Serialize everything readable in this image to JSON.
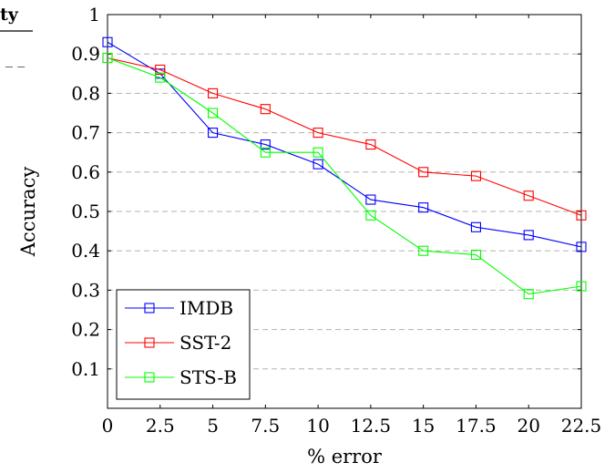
{
  "chart_data": {
    "type": "line",
    "title": "",
    "xlabel": "% error",
    "ylabel": "Accuracy",
    "x": [
      0,
      2.5,
      5,
      7.5,
      10,
      12.5,
      15,
      17.5,
      20,
      22.5
    ],
    "x_tick_labels": [
      "0",
      "2.5",
      "5",
      "7.5",
      "10",
      "12.5",
      "15",
      "17.5",
      "20",
      "22.5"
    ],
    "y_tick_labels": [
      "0.1",
      "0.2",
      "0.3",
      "0.4",
      "0.5",
      "0.6",
      "0.7",
      "0.8",
      "0.9",
      "1"
    ],
    "xlim": [
      0,
      22.5
    ],
    "ylim": [
      0,
      1
    ],
    "grid": "horizontal dashed",
    "legend_position": "bottom-left",
    "marker": "open square",
    "series": [
      {
        "name": "IMDB",
        "color": "#0000ff",
        "values": [
          0.93,
          0.85,
          0.7,
          0.67,
          0.62,
          0.53,
          0.51,
          0.46,
          0.44,
          0.41
        ]
      },
      {
        "name": "SST-2",
        "color": "#ff0000",
        "values": [
          0.89,
          0.86,
          0.8,
          0.76,
          0.7,
          0.67,
          0.6,
          0.59,
          0.54,
          0.49
        ]
      },
      {
        "name": "STS-B",
        "color": "#00ff00",
        "values": [
          0.89,
          0.84,
          0.75,
          0.65,
          0.65,
          0.49,
          0.4,
          0.39,
          0.29,
          0.31
        ]
      }
    ]
  },
  "neighbor_fragment": {
    "heading_text": "ty",
    "dash_text": "_ _"
  }
}
